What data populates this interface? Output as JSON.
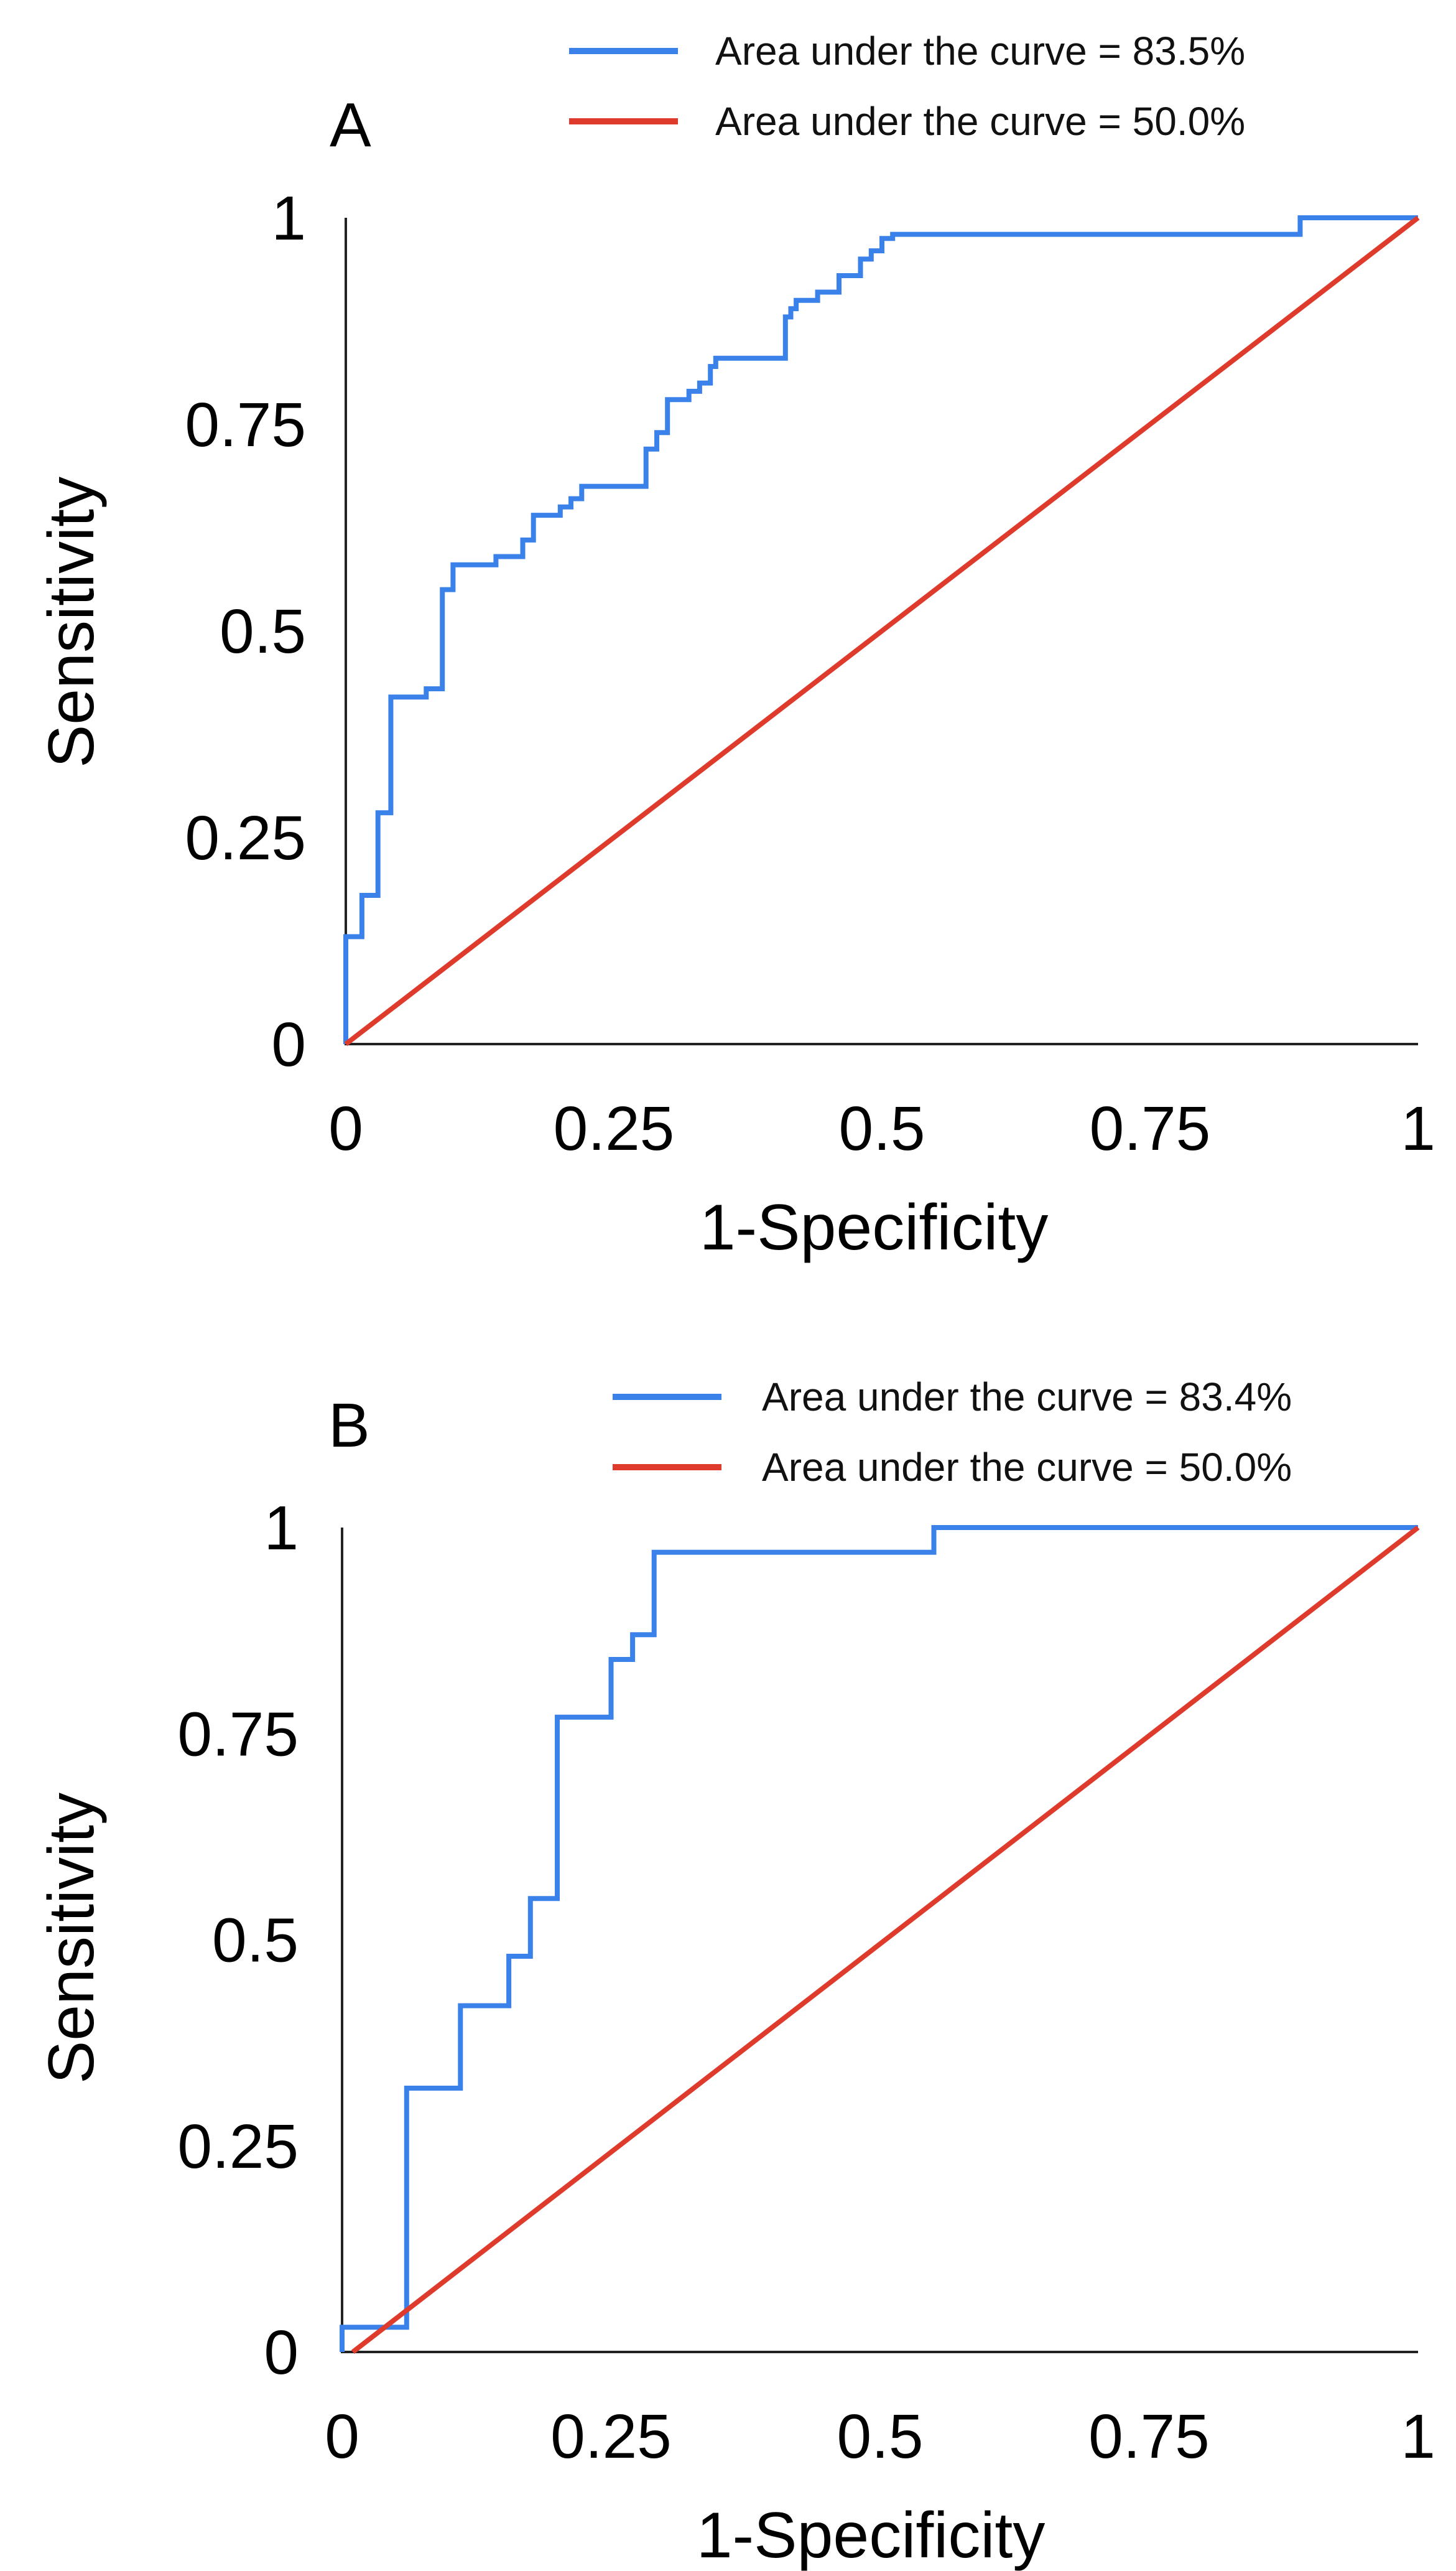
{
  "chart_data": [
    {
      "type": "line",
      "panel_label": "A",
      "xlabel": "1-Specificity",
      "ylabel": "Sensitivity",
      "xlim": [
        0,
        1
      ],
      "ylim": [
        0,
        1
      ],
      "x_ticks": [
        "0",
        "0.25",
        "0.5",
        "0.75",
        "1"
      ],
      "y_ticks": [
        "0",
        "0.25",
        "0.5",
        "0.75",
        "1"
      ],
      "legend_position": "top-right",
      "series": [
        {
          "name": "Area under the curve = 83.5%",
          "color": "#3a82ea",
          "points": [
            [
              0,
              0
            ],
            [
              0,
              0.13
            ],
            [
              0.015,
              0.13
            ],
            [
              0.015,
              0.18
            ],
            [
              0.03,
              0.18
            ],
            [
              0.03,
              0.28
            ],
            [
              0.042,
              0.28
            ],
            [
              0.042,
              0.42
            ],
            [
              0.075,
              0.42
            ],
            [
              0.075,
              0.43
            ],
            [
              0.09,
              0.43
            ],
            [
              0.09,
              0.55
            ],
            [
              0.1,
              0.55
            ],
            [
              0.1,
              0.58
            ],
            [
              0.14,
              0.58
            ],
            [
              0.14,
              0.59
            ],
            [
              0.165,
              0.59
            ],
            [
              0.165,
              0.61
            ],
            [
              0.175,
              0.61
            ],
            [
              0.175,
              0.64
            ],
            [
              0.2,
              0.64
            ],
            [
              0.2,
              0.65
            ],
            [
              0.21,
              0.65
            ],
            [
              0.21,
              0.66
            ],
            [
              0.22,
              0.66
            ],
            [
              0.22,
              0.675
            ],
            [
              0.28,
              0.675
            ],
            [
              0.28,
              0.72
            ],
            [
              0.29,
              0.72
            ],
            [
              0.29,
              0.74
            ],
            [
              0.3,
              0.74
            ],
            [
              0.3,
              0.78
            ],
            [
              0.32,
              0.78
            ],
            [
              0.32,
              0.79
            ],
            [
              0.33,
              0.79
            ],
            [
              0.33,
              0.8
            ],
            [
              0.34,
              0.8
            ],
            [
              0.34,
              0.82
            ],
            [
              0.345,
              0.82
            ],
            [
              0.345,
              0.83
            ],
            [
              0.41,
              0.83
            ],
            [
              0.41,
              0.88
            ],
            [
              0.415,
              0.88
            ],
            [
              0.415,
              0.89
            ],
            [
              0.42,
              0.89
            ],
            [
              0.42,
              0.9
            ],
            [
              0.44,
              0.9
            ],
            [
              0.44,
              0.91
            ],
            [
              0.46,
              0.91
            ],
            [
              0.46,
              0.93
            ],
            [
              0.48,
              0.93
            ],
            [
              0.48,
              0.95
            ],
            [
              0.49,
              0.95
            ],
            [
              0.49,
              0.96
            ],
            [
              0.5,
              0.96
            ],
            [
              0.5,
              0.975
            ],
            [
              0.51,
              0.975
            ],
            [
              0.51,
              0.98
            ],
            [
              0.89,
              0.98
            ],
            [
              0.89,
              1
            ],
            [
              1,
              1
            ]
          ]
        },
        {
          "name": "Area under the curve = 50.0%",
          "color": "#de3b2d",
          "points": [
            [
              0,
              0
            ],
            [
              1,
              1
            ]
          ]
        }
      ]
    },
    {
      "type": "line",
      "panel_label": "B",
      "xlabel": "1-Specificity",
      "ylabel": "Sensitivity",
      "xlim": [
        0,
        1
      ],
      "ylim": [
        0,
        1
      ],
      "x_ticks": [
        "0",
        "0.25",
        "0.5",
        "0.75",
        "1"
      ],
      "y_ticks": [
        "0",
        "0.25",
        "0.5",
        "0.75",
        "1"
      ],
      "legend_position": "top-right",
      "series": [
        {
          "name": "Area under the curve = 83.4%",
          "color": "#3a82ea",
          "points": [
            [
              0,
              0
            ],
            [
              0,
              0.03
            ],
            [
              0.06,
              0.03
            ],
            [
              0.06,
              0.32
            ],
            [
              0.11,
              0.32
            ],
            [
              0.11,
              0.42
            ],
            [
              0.155,
              0.42
            ],
            [
              0.155,
              0.48
            ],
            [
              0.175,
              0.48
            ],
            [
              0.175,
              0.55
            ],
            [
              0.2,
              0.55
            ],
            [
              0.2,
              0.77
            ],
            [
              0.25,
              0.77
            ],
            [
              0.25,
              0.84
            ],
            [
              0.27,
              0.84
            ],
            [
              0.27,
              0.87
            ],
            [
              0.29,
              0.87
            ],
            [
              0.29,
              0.97
            ],
            [
              0.55,
              0.97
            ],
            [
              0.55,
              1
            ],
            [
              1,
              1
            ]
          ]
        },
        {
          "name": "Area under the curve = 50.0%",
          "color": "#de3b2d",
          "points": [
            [
              0.01,
              0
            ],
            [
              1,
              1
            ]
          ]
        }
      ]
    }
  ]
}
